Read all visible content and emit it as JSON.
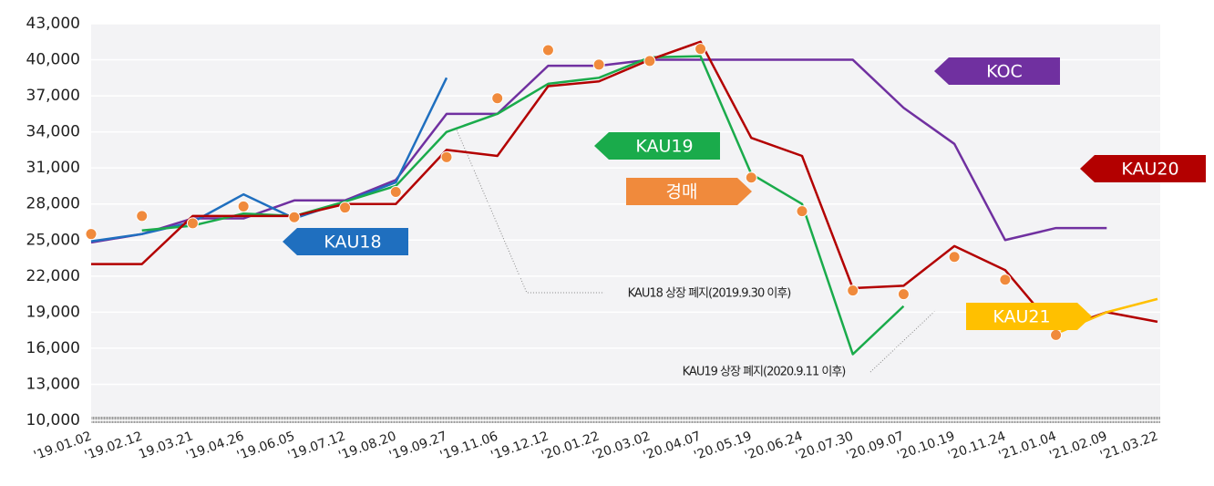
{
  "chart_data": {
    "type": "line",
    "categories": [
      "'19.01.02",
      "'19.02.12",
      "19.03.21",
      "'19.04.26",
      "'19.06.05",
      "'19.07.12",
      "'19.08.20",
      "'19.09.27",
      "'19.11.06",
      "'19.12.12",
      "'20.01.22",
      "'20.03.02",
      "'20.04.07",
      "'20.05.19",
      "'20.06.24",
      "'20.07.30",
      "'20.09.07",
      "'20.10.19",
      "'20.11.24",
      "'21.01.04",
      "'21.02.09",
      "'21.03.22"
    ],
    "series": [
      {
        "name": "KOC",
        "color": "#7030a0",
        "values": [
          24800,
          25500,
          26800,
          26800,
          28300,
          28300,
          30000,
          35500,
          35500,
          39500,
          39500,
          40000,
          40000,
          40000,
          40000,
          40000,
          36000,
          33000,
          25000,
          26000,
          26000,
          null
        ]
      },
      {
        "name": "KAU18",
        "color": "#1f6fbf",
        "values": [
          24900,
          25500,
          26500,
          28800,
          26800,
          28200,
          29800,
          38500,
          null,
          null,
          null,
          null,
          null,
          null,
          null,
          null,
          null,
          null,
          null,
          null,
          null,
          null
        ]
      },
      {
        "name": "KAU19",
        "color": "#1aab4b",
        "values": [
          null,
          25800,
          26200,
          27200,
          27000,
          28200,
          29500,
          34000,
          35500,
          38000,
          38500,
          40200,
          40300,
          30500,
          28000,
          15500,
          19500,
          null,
          null,
          null,
          null,
          null
        ]
      },
      {
        "name": "KAU20",
        "color": "#b30000",
        "values": [
          23000,
          23000,
          27000,
          27000,
          27000,
          28000,
          28000,
          32500,
          32000,
          37800,
          38200,
          40000,
          41500,
          33500,
          32000,
          21000,
          21200,
          24500,
          22500,
          17500,
          19000,
          18200
        ]
      },
      {
        "name": "KAU21",
        "color": "#ffc000",
        "values": [
          null,
          null,
          null,
          null,
          null,
          null,
          null,
          null,
          null,
          null,
          null,
          null,
          null,
          null,
          null,
          null,
          null,
          null,
          null,
          17200,
          19000,
          20100
        ]
      },
      {
        "name": "경매",
        "type": "scatter",
        "color": "#f08a3c",
        "values": [
          25500,
          27000,
          26400,
          27800,
          26900,
          27700,
          29000,
          31900,
          36800,
          40800,
          39600,
          39900,
          40900,
          30200,
          27400,
          20800,
          20500,
          23600,
          21700,
          17100,
          null,
          null
        ]
      }
    ],
    "annotations": [
      "KAU18 상장 폐지(2019.9.30 이후)",
      "KAU19 상장 폐지(2020.9.11 이후)"
    ],
    "ylim": [
      10000,
      43000
    ],
    "yticks": [
      {
        "value": 10000,
        "label": "10,000"
      },
      {
        "value": 13000,
        "label": "13,000"
      },
      {
        "value": 16000,
        "label": "16,000"
      },
      {
        "value": 19000,
        "label": "19,000"
      },
      {
        "value": 22000,
        "label": "22,000"
      },
      {
        "value": 25000,
        "label": "25,000"
      },
      {
        "value": 28000,
        "label": "28,000"
      },
      {
        "value": 31000,
        "label": "31,000"
      },
      {
        "value": 34000,
        "label": "34,000"
      },
      {
        "value": 37000,
        "label": "37,000"
      },
      {
        "value": 40000,
        "label": "40,000"
      },
      {
        "value": 43000,
        "label": "43,000"
      }
    ],
    "grid": true
  }
}
